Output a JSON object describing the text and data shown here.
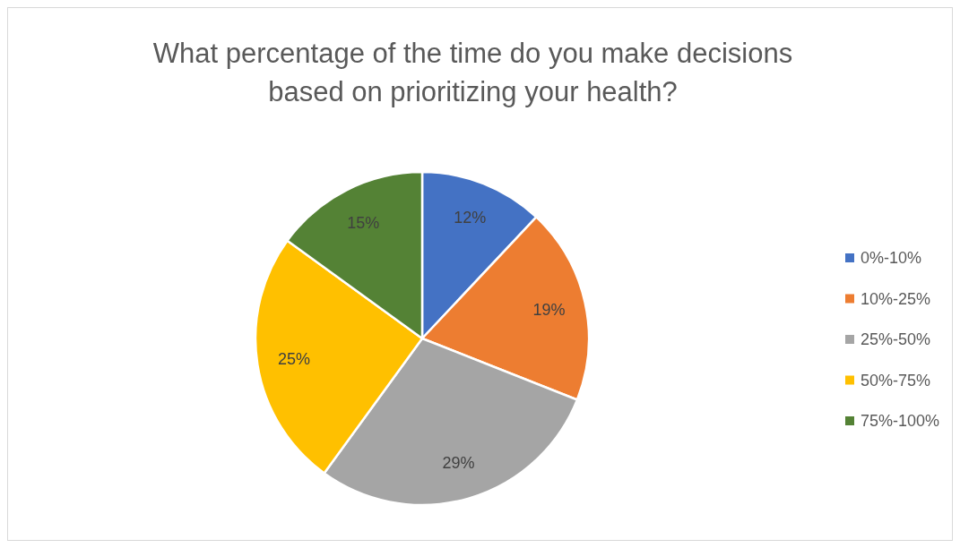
{
  "chart_data": {
    "type": "pie",
    "title": "What percentage of the time do you make decisions based on prioritizing your health?",
    "categories": [
      "0%-10%",
      "10%-25%",
      "25%-50%",
      "50%-75%",
      "75%-100%"
    ],
    "values": [
      12,
      19,
      29,
      25,
      15
    ],
    "colors": [
      "#4472c4",
      "#ed7d31",
      "#a5a5a5",
      "#ffc000",
      "#548235"
    ],
    "value_labels": [
      "12%",
      "19%",
      "29%",
      "25%",
      "15%"
    ],
    "legend": "right"
  }
}
